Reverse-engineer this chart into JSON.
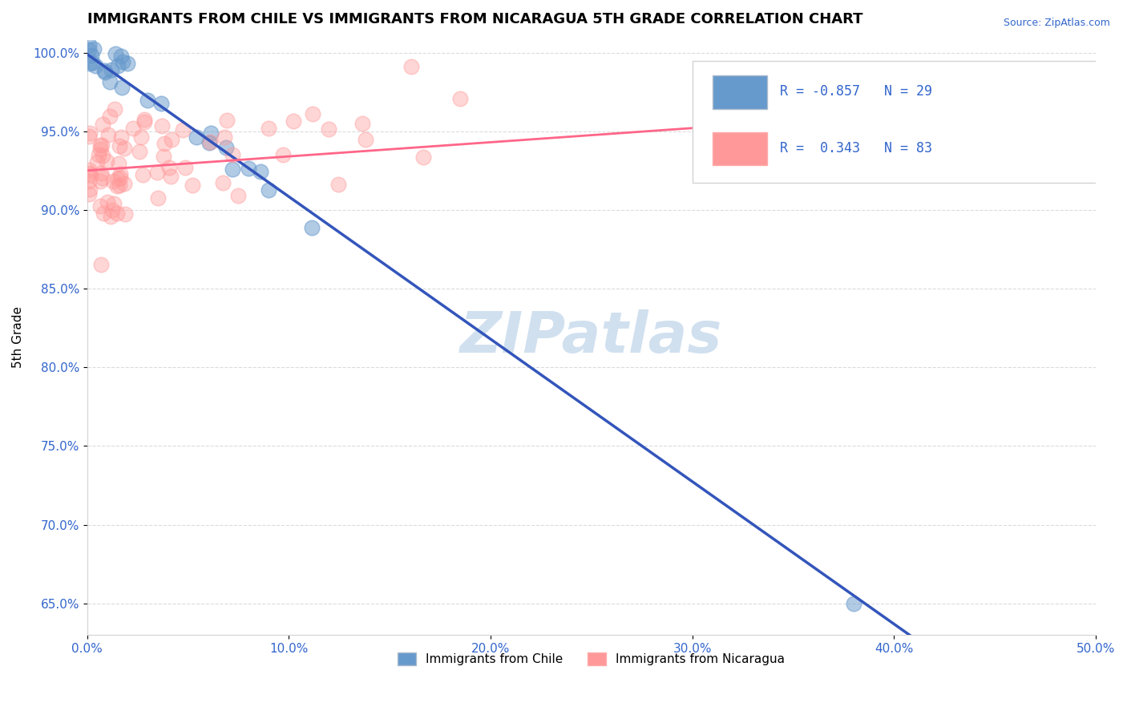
{
  "title": "IMMIGRANTS FROM CHILE VS IMMIGRANTS FROM NICARAGUA 5TH GRADE CORRELATION CHART",
  "source": "Source: ZipAtlas.com",
  "ylabel": "5th Grade",
  "legend_label1": "Immigrants from Chile",
  "legend_label2": "Immigrants from Nicaragua",
  "r_chile": -0.857,
  "n_chile": 29,
  "r_nicaragua": 0.343,
  "n_nicaragua": 83,
  "xlim": [
    0.0,
    0.5
  ],
  "ylim": [
    0.63,
    1.008
  ],
  "xticks": [
    0.0,
    0.1,
    0.2,
    0.3,
    0.4,
    0.5
  ],
  "yticks": [
    0.65,
    0.7,
    0.75,
    0.8,
    0.85,
    0.9,
    0.95,
    1.0
  ],
  "xtick_labels": [
    "0.0%",
    "10.0%",
    "20.0%",
    "30.0%",
    "40.0%",
    "50.0%"
  ],
  "ytick_labels": [
    "65.0%",
    "70.0%",
    "75.0%",
    "80.0%",
    "85.0%",
    "90.0%",
    "95.0%",
    "100.0%"
  ],
  "color_chile": "#6699CC",
  "color_nicaragua": "#FF9999",
  "trendline_chile": "#3355BB",
  "trendline_nicaragua": "#FF6688",
  "watermark": "ZIPatlas",
  "watermark_color": "#CCDDEE"
}
